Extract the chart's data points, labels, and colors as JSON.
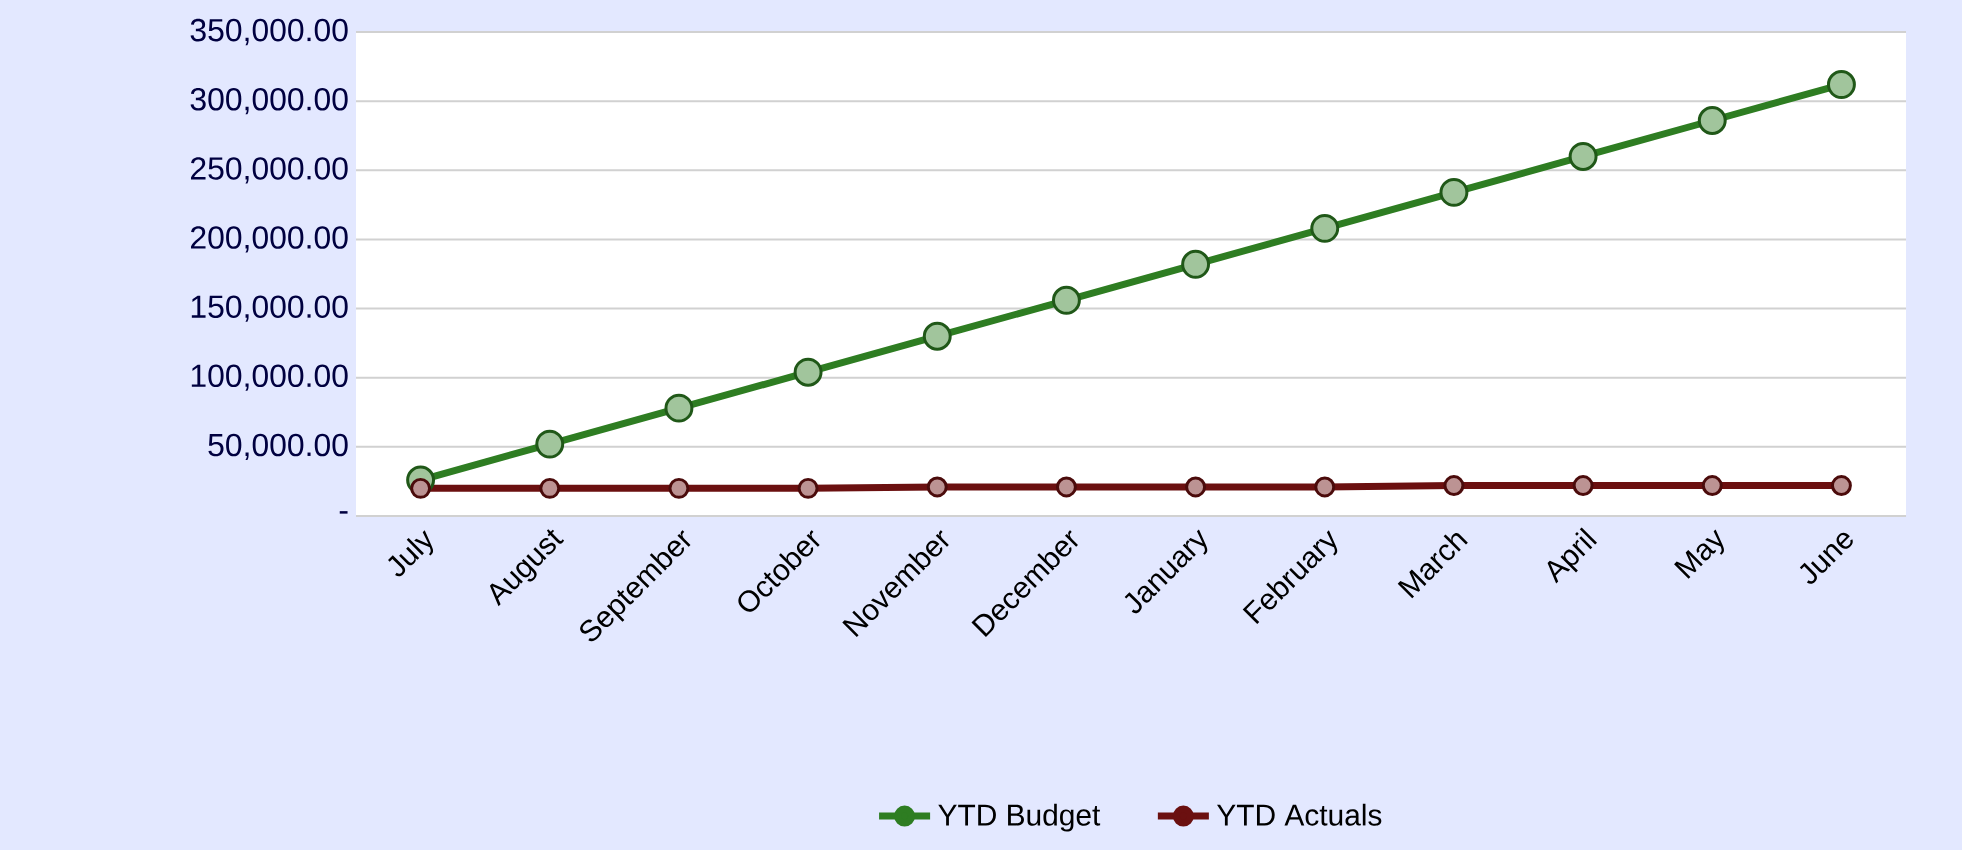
{
  "chart_data": {
    "type": "line",
    "categories": [
      "July",
      "August",
      "September",
      "October",
      "November",
      "December",
      "January",
      "February",
      "March",
      "April",
      "May",
      "June"
    ],
    "series": [
      {
        "name": "YTD Budget",
        "color": "#2e7d22",
        "values": [
          26000,
          52000,
          78000,
          104000,
          130000,
          156000,
          182000,
          208000,
          234000,
          260000,
          286000,
          312000
        ]
      },
      {
        "name": "YTD Actuals",
        "color": "#6b1010",
        "values": [
          20000,
          20000,
          20000,
          20000,
          21000,
          21000,
          21000,
          21000,
          22000,
          22000,
          22000,
          22000
        ]
      }
    ],
    "ylim": [
      0,
      350000
    ],
    "yticks": [
      {
        "value": 0,
        "label": "-"
      },
      {
        "value": 50000,
        "label": "50,000.00"
      },
      {
        "value": 100000,
        "label": "100,000.00"
      },
      {
        "value": 150000,
        "label": "150,000.00"
      },
      {
        "value": 200000,
        "label": "200,000.00"
      },
      {
        "value": 250000,
        "label": "250,000.00"
      },
      {
        "value": 300000,
        "label": "300,000.00"
      },
      {
        "value": 350000,
        "label": "350,000.00"
      }
    ],
    "grid": "y",
    "legend": "bottom",
    "marker": "circle",
    "line_style": "solid"
  }
}
